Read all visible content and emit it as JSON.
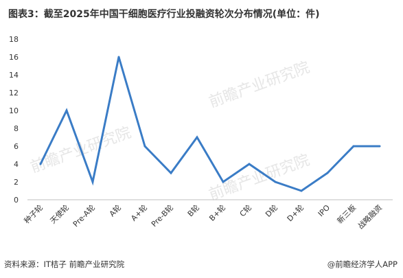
{
  "title": "图表3：截至2025年中国干细胞医疗行业投融资轮次分布情况(单位：件)",
  "chart_data": {
    "type": "line",
    "categories": [
      "种子轮",
      "天使轮",
      "Pre-A轮",
      "A轮",
      "A+轮",
      "Pre-B轮",
      "B轮",
      "B+轮",
      "C轮",
      "D轮",
      "D+轮",
      "IPO",
      "新三板",
      "战略融资"
    ],
    "values": [
      4,
      10,
      2,
      16,
      6,
      3,
      7,
      2,
      4,
      2,
      1,
      3,
      6,
      6
    ],
    "ylim": [
      0,
      18
    ],
    "yticks": [
      0,
      2,
      4,
      6,
      8,
      10,
      12,
      14,
      16,
      18
    ],
    "grid": false,
    "line_color": "#3a7cc6"
  },
  "footer": {
    "source": "资料来源：IT桔子 前瞻产业研究院",
    "credit": "@前瞻经济学人APP"
  },
  "watermark": {
    "text": "前瞻产业研究院"
  }
}
